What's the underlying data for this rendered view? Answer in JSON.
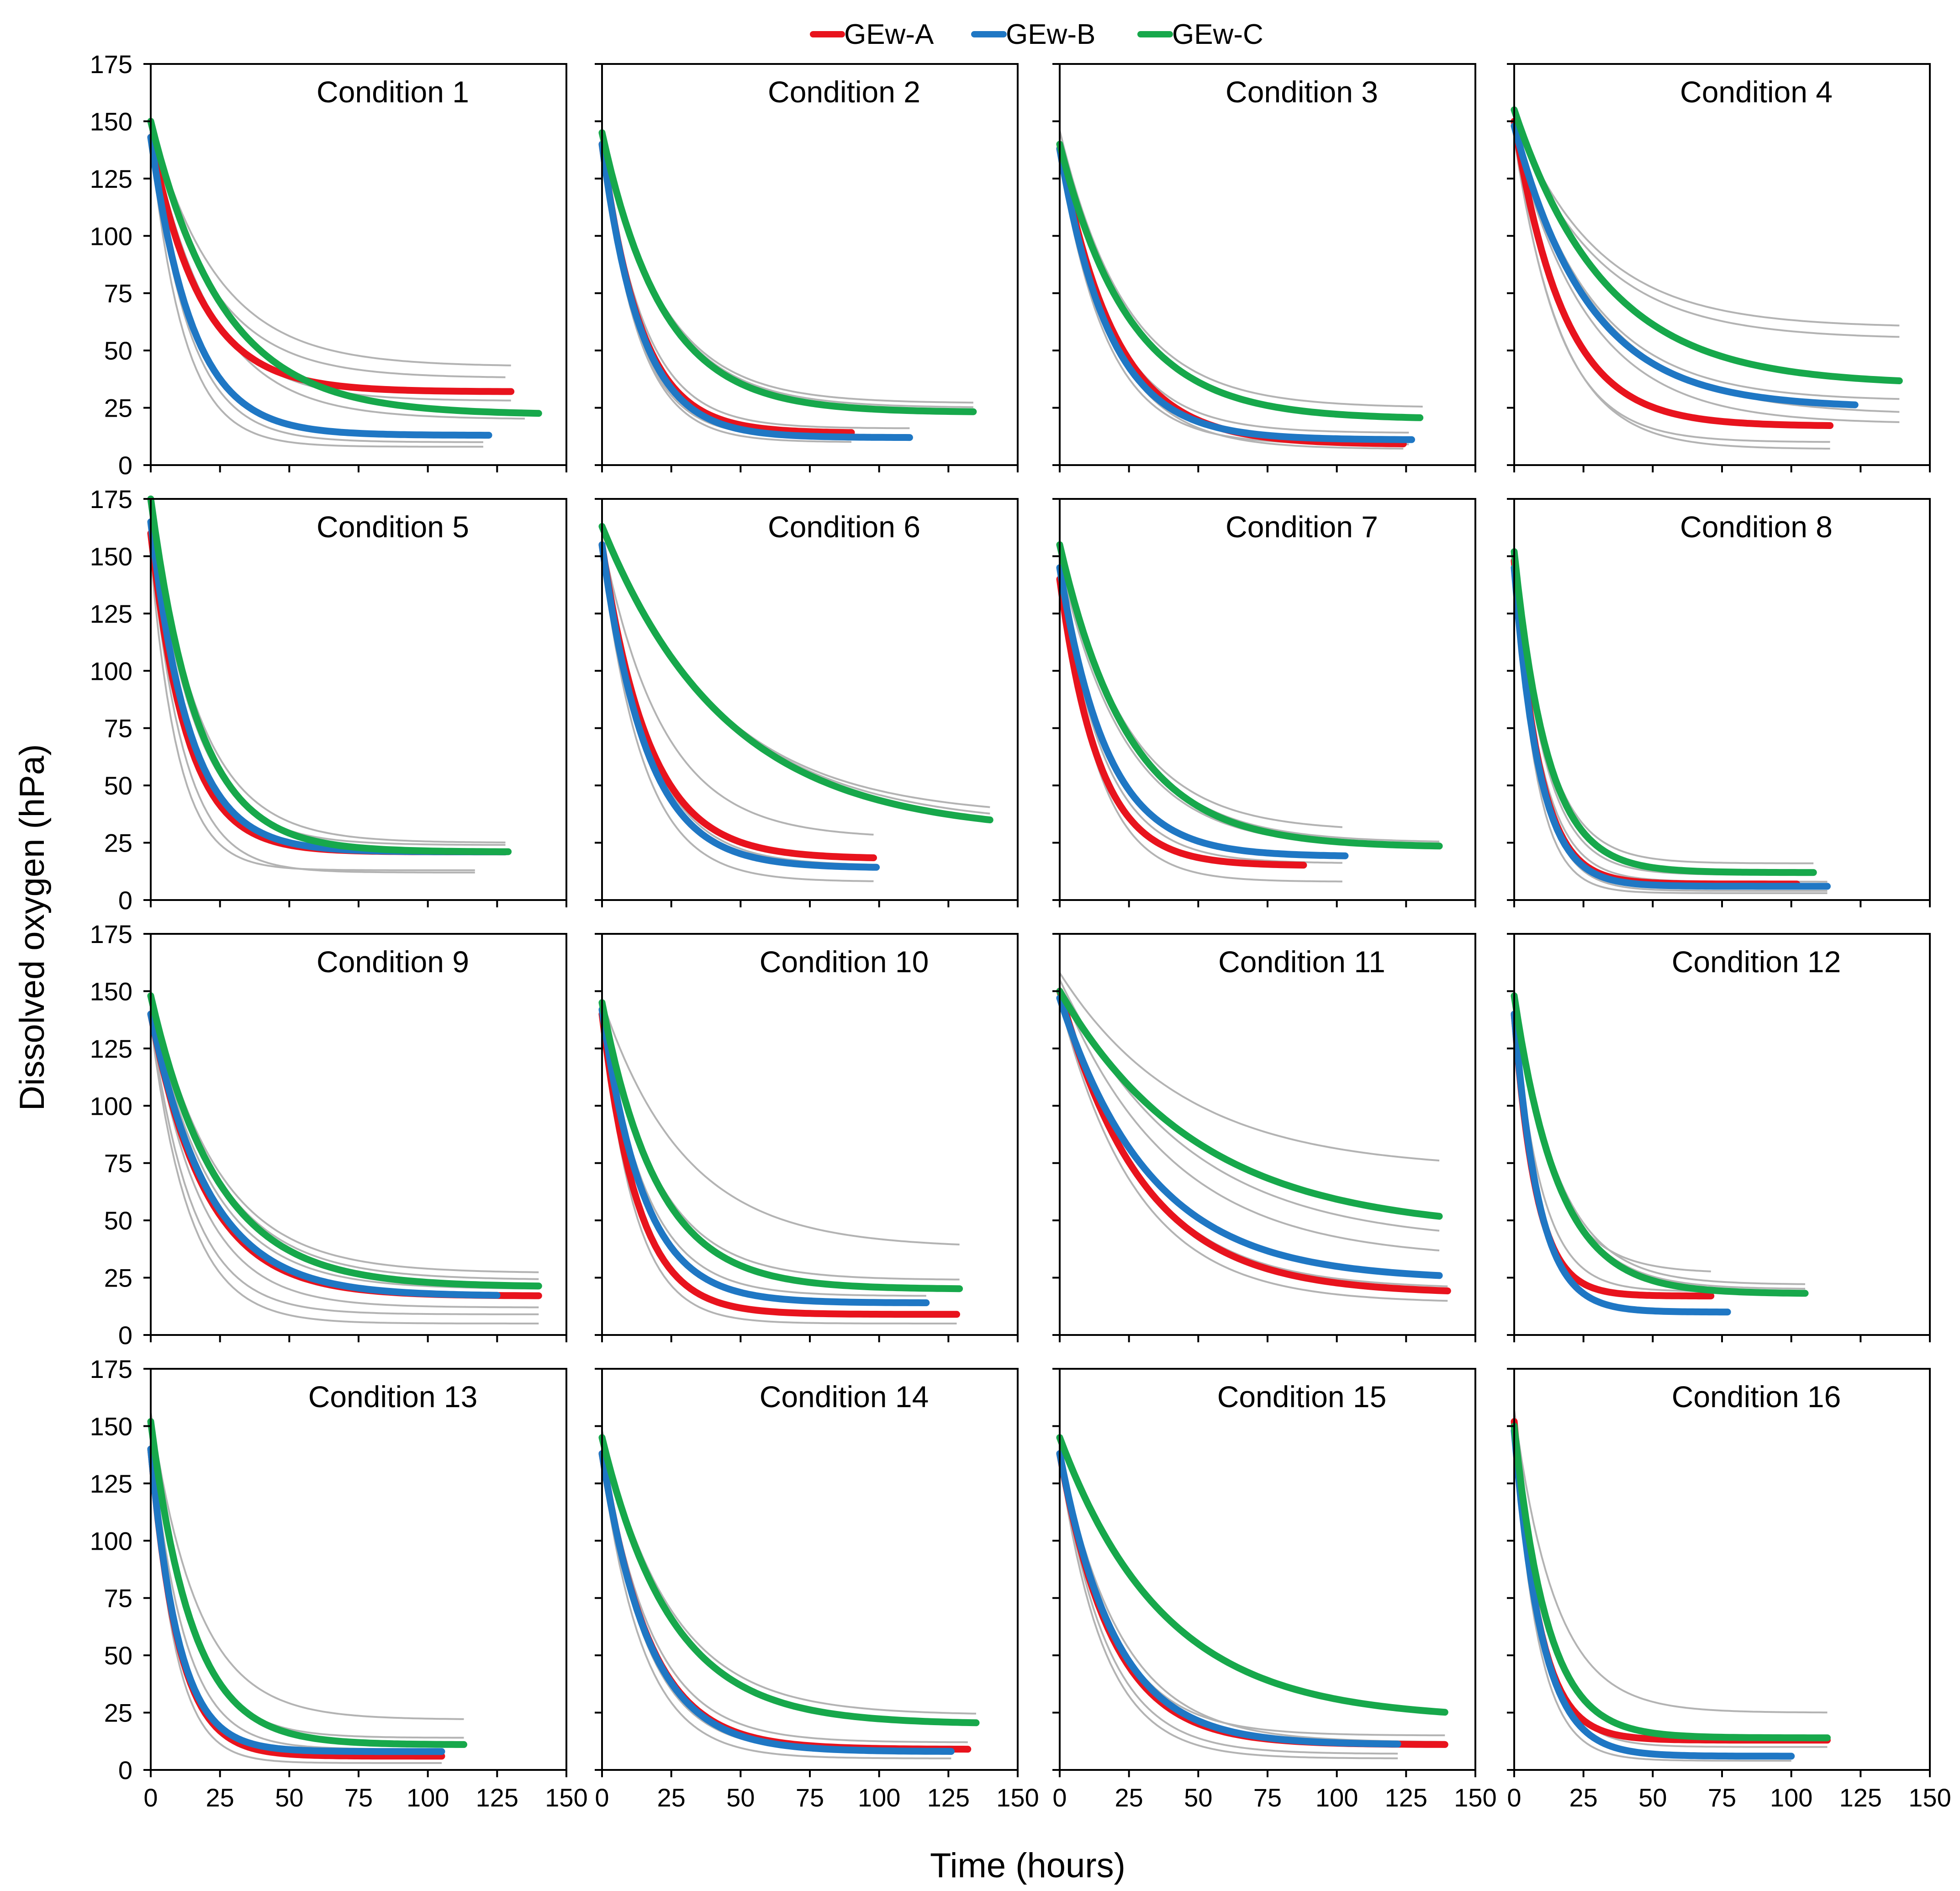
{
  "chart_data": {
    "type": "line",
    "title": "",
    "xlabel": "Time (hours)",
    "ylabel": "Dissolved oxygen (hPa)",
    "xlim": [
      0,
      150
    ],
    "ylim": [
      0,
      175
    ],
    "x_ticks": [
      0,
      25,
      50,
      75,
      100,
      125,
      150
    ],
    "y_ticks": [
      0,
      25,
      50,
      75,
      100,
      125,
      150,
      175
    ],
    "x_tick_labels": [
      "0",
      "25",
      "50",
      "75",
      "100",
      "125",
      "150"
    ],
    "y_tick_labels": [
      "0",
      "25",
      "50",
      "75",
      "100",
      "125",
      "150",
      "175"
    ],
    "grid": false,
    "legend_position": "top-center",
    "series_styles": [
      {
        "name": "GEw-A",
        "color": "#e8131d"
      },
      {
        "name": "GEw-B",
        "color": "#1f77c4"
      },
      {
        "name": "GEw-C",
        "color": "#17a84b"
      }
    ],
    "replicate_color": "#b3b3b3",
    "replicate_note": "grey lines are individual replicate traces",
    "curve_model": "exponential decay: y = plateau + (start - plateau) * exp(-t / tau)",
    "panels": [
      {
        "title": "Condition 1",
        "series": [
          {
            "name": "GEw-A",
            "start": 143,
            "plateau": 32,
            "tau": 18,
            "t_end": 130
          },
          {
            "name": "GEw-B",
            "start": 143,
            "plateau": 13,
            "tau": 15,
            "t_end": 122
          },
          {
            "name": "GEw-C",
            "start": 150,
            "plateau": 22,
            "tau": 26,
            "t_end": 140
          }
        ],
        "replicates": [
          [
            150,
            43,
            24,
            130
          ],
          [
            147,
            38,
            22,
            128
          ],
          [
            144,
            28,
            20,
            130
          ],
          [
            146,
            20,
            22,
            135
          ],
          [
            142,
            10,
            14,
            120
          ],
          [
            141,
            8,
            12,
            120
          ]
        ]
      },
      {
        "title": "Condition 2",
        "series": [
          {
            "name": "GEw-A",
            "start": 140,
            "plateau": 14,
            "tau": 14,
            "t_end": 90
          },
          {
            "name": "GEw-B",
            "start": 140,
            "plateau": 12,
            "tau": 14,
            "t_end": 111
          },
          {
            "name": "GEw-C",
            "start": 145,
            "plateau": 23,
            "tau": 22,
            "t_end": 134
          }
        ],
        "replicates": [
          [
            144,
            27,
            22,
            134
          ],
          [
            146,
            25,
            22,
            134
          ],
          [
            142,
            16,
            15,
            111
          ],
          [
            138,
            12,
            13,
            111
          ],
          [
            139,
            10,
            13,
            90
          ]
        ]
      },
      {
        "title": "Condition 3",
        "series": [
          {
            "name": "GEw-A",
            "start": 138,
            "plateau": 9,
            "tau": 20,
            "t_end": 124
          },
          {
            "name": "GEw-B",
            "start": 138,
            "plateau": 11,
            "tau": 18,
            "t_end": 127
          },
          {
            "name": "GEw-C",
            "start": 140,
            "plateau": 20,
            "tau": 25,
            "t_end": 130
          }
        ],
        "replicates": [
          [
            146,
            25,
            24,
            131
          ],
          [
            141,
            21,
            25,
            130
          ],
          [
            139,
            14,
            19,
            126
          ],
          [
            134,
            9,
            17,
            126
          ],
          [
            135,
            7,
            19,
            124
          ]
        ]
      },
      {
        "title": "Condition 4",
        "series": [
          {
            "name": "GEw-A",
            "start": 150,
            "plateau": 17,
            "tau": 18,
            "t_end": 114
          },
          {
            "name": "GEw-B",
            "start": 148,
            "plateau": 25,
            "tau": 27,
            "t_end": 123
          },
          {
            "name": "GEw-C",
            "start": 155,
            "plateau": 35,
            "tau": 33,
            "t_end": 139
          }
        ],
        "replicates": [
          [
            152,
            60,
            30,
            139
          ],
          [
            150,
            55,
            30,
            139
          ],
          [
            148,
            28,
            28,
            139
          ],
          [
            146,
            22,
            30,
            139
          ],
          [
            144,
            18,
            27,
            139
          ],
          [
            145,
            10,
            16,
            114
          ],
          [
            143,
            7,
            17,
            114
          ]
        ]
      },
      {
        "title": "Condition 5",
        "series": [
          {
            "name": "GEw-A",
            "start": 160,
            "plateau": 21,
            "tau": 13,
            "t_end": 128
          },
          {
            "name": "GEw-B",
            "start": 165,
            "plateau": 21,
            "tau": 14,
            "t_end": 128
          },
          {
            "name": "GEw-C",
            "start": 175,
            "plateau": 21,
            "tau": 17,
            "t_end": 129
          }
        ],
        "replicates": [
          [
            172,
            25,
            18,
            128
          ],
          [
            168,
            24,
            16,
            128
          ],
          [
            160,
            20,
            14,
            128
          ],
          [
            150,
            13,
            10,
            117
          ],
          [
            155,
            12,
            12,
            117
          ]
        ]
      },
      {
        "title": "Condition 6",
        "series": [
          {
            "name": "GEw-A",
            "start": 155,
            "plateau": 18,
            "tau": 17,
            "t_end": 98
          },
          {
            "name": "GEw-B",
            "start": 155,
            "plateau": 14,
            "tau": 16,
            "t_end": 99
          },
          {
            "name": "GEw-C",
            "start": 163,
            "plateau": 29,
            "tau": 45,
            "t_end": 140
          }
        ],
        "replicates": [
          [
            163,
            36,
            42,
            140
          ],
          [
            160,
            32,
            45,
            140
          ],
          [
            158,
            27,
            22,
            98
          ],
          [
            154,
            15,
            17,
            99
          ],
          [
            150,
            8,
            15,
            98
          ]
        ]
      },
      {
        "title": "Condition 7",
        "series": [
          {
            "name": "GEw-A",
            "start": 140,
            "plateau": 15,
            "tau": 14,
            "t_end": 88
          },
          {
            "name": "GEw-B",
            "start": 145,
            "plateau": 19,
            "tau": 17,
            "t_end": 103
          },
          {
            "name": "GEw-C",
            "start": 155,
            "plateau": 23,
            "tau": 25,
            "t_end": 137
          }
        ],
        "replicates": [
          [
            156,
            30,
            24,
            102
          ],
          [
            152,
            25,
            25,
            137
          ],
          [
            148,
            23,
            24,
            137
          ],
          [
            143,
            16,
            16,
            102
          ],
          [
            142,
            8,
            14,
            102
          ]
        ]
      },
      {
        "title": "Condition 8",
        "series": [
          {
            "name": "GEw-A",
            "start": 148,
            "plateau": 7,
            "tau": 9,
            "t_end": 102
          },
          {
            "name": "GEw-B",
            "start": 145,
            "plateau": 6,
            "tau": 9,
            "t_end": 113
          },
          {
            "name": "GEw-C",
            "start": 152,
            "plateau": 12,
            "tau": 12,
            "t_end": 108
          }
        ],
        "replicates": [
          [
            152,
            16,
            12,
            108
          ],
          [
            150,
            11,
            11,
            108
          ],
          [
            147,
            8,
            10,
            113
          ],
          [
            144,
            4,
            9,
            113
          ],
          [
            145,
            3,
            8,
            113
          ]
        ]
      },
      {
        "title": "Condition 9",
        "series": [
          {
            "name": "GEw-A",
            "start": 140,
            "plateau": 17,
            "tau": 20,
            "t_end": 140
          },
          {
            "name": "GEw-B",
            "start": 140,
            "plateau": 17,
            "tau": 21,
            "t_end": 125
          },
          {
            "name": "GEw-C",
            "start": 148,
            "plateau": 21,
            "tau": 24,
            "t_end": 140
          }
        ],
        "replicates": [
          [
            150,
            27,
            24,
            140
          ],
          [
            147,
            24,
            24,
            140
          ],
          [
            144,
            20,
            22,
            140
          ],
          [
            140,
            12,
            18,
            140
          ],
          [
            138,
            9,
            15,
            140
          ],
          [
            136,
            5,
            14,
            140
          ]
        ]
      },
      {
        "title": "Condition 10",
        "series": [
          {
            "name": "GEw-A",
            "start": 140,
            "plateau": 9,
            "tau": 13,
            "t_end": 128
          },
          {
            "name": "GEw-B",
            "start": 142,
            "plateau": 14,
            "tau": 15,
            "t_end": 117
          },
          {
            "name": "GEw-C",
            "start": 145,
            "plateau": 20,
            "tau": 20,
            "t_end": 129
          }
        ],
        "replicates": [
          [
            146,
            38,
            30,
            129
          ],
          [
            144,
            24,
            20,
            129
          ],
          [
            141,
            17,
            16,
            117
          ],
          [
            139,
            8,
            13,
            128
          ],
          [
            138,
            5,
            12,
            128
          ]
        ]
      },
      {
        "title": "Condition 11",
        "series": [
          {
            "name": "GEw-A",
            "start": 150,
            "plateau": 18,
            "tau": 30,
            "t_end": 140
          },
          {
            "name": "GEw-B",
            "start": 147,
            "plateau": 24,
            "tau": 33,
            "t_end": 137
          },
          {
            "name": "GEw-C",
            "start": 150,
            "plateau": 45,
            "tau": 50,
            "t_end": 137
          }
        ],
        "replicates": [
          [
            158,
            72,
            45,
            137
          ],
          [
            155,
            40,
            45,
            137
          ],
          [
            152,
            33,
            40,
            137
          ],
          [
            149,
            20,
            30,
            140
          ],
          [
            147,
            17,
            30,
            140
          ],
          [
            146,
            14,
            28,
            140
          ]
        ]
      },
      {
        "title": "Condition 12",
        "series": [
          {
            "name": "GEw-A",
            "start": 140,
            "plateau": 17,
            "tau": 8,
            "t_end": 71
          },
          {
            "name": "GEw-B",
            "start": 140,
            "plateau": 10,
            "tau": 9,
            "t_end": 77
          },
          {
            "name": "GEw-C",
            "start": 148,
            "plateau": 18,
            "tau": 16,
            "t_end": 105
          }
        ],
        "replicates": [
          [
            150,
            22,
            16,
            105
          ],
          [
            146,
            20,
            16,
            105
          ],
          [
            143,
            27,
            14,
            71
          ],
          [
            140,
            19,
            10,
            71
          ],
          [
            138,
            11,
            9,
            77
          ]
        ]
      },
      {
        "title": "Condition 13",
        "series": [
          {
            "name": "GEw-A",
            "start": 140,
            "plateau": 6,
            "tau": 10,
            "t_end": 105
          },
          {
            "name": "GEw-B",
            "start": 140,
            "plateau": 8,
            "tau": 10,
            "t_end": 105
          },
          {
            "name": "GEw-C",
            "start": 152,
            "plateau": 11,
            "tau": 15,
            "t_end": 113
          }
        ],
        "replicates": [
          [
            156,
            22,
            17,
            113
          ],
          [
            150,
            14,
            14,
            113
          ],
          [
            145,
            9,
            12,
            105
          ],
          [
            140,
            5,
            10,
            105
          ],
          [
            138,
            3,
            9,
            105
          ]
        ]
      },
      {
        "title": "Condition 14",
        "series": [
          {
            "name": "GEw-A",
            "start": 138,
            "plateau": 9,
            "tau": 17,
            "t_end": 132
          },
          {
            "name": "GEw-B",
            "start": 138,
            "plateau": 8,
            "tau": 17,
            "t_end": 126
          },
          {
            "name": "GEw-C",
            "start": 145,
            "plateau": 20,
            "tau": 25,
            "t_end": 135
          }
        ],
        "replicates": [
          [
            148,
            24,
            25,
            135
          ],
          [
            146,
            20,
            24,
            135
          ],
          [
            141,
            12,
            18,
            132
          ],
          [
            137,
            8,
            16,
            132
          ],
          [
            134,
            5,
            15,
            126
          ]
        ]
      },
      {
        "title": "Condition 15",
        "series": [
          {
            "name": "GEw-A",
            "start": 138,
            "plateau": 11,
            "tau": 19,
            "t_end": 139
          },
          {
            "name": "GEw-B",
            "start": 138,
            "plateau": 11,
            "tau": 20,
            "t_end": 122
          },
          {
            "name": "GEw-C",
            "start": 145,
            "plateau": 22,
            "tau": 38,
            "t_end": 139
          }
        ],
        "replicates": [
          [
            141,
            15,
            19,
            139
          ],
          [
            139,
            12,
            22,
            139
          ],
          [
            137,
            7,
            17,
            122
          ],
          [
            135,
            5,
            16,
            122
          ]
        ]
      },
      {
        "title": "Condition 16",
        "series": [
          {
            "name": "GEw-A",
            "start": 152,
            "plateau": 13,
            "tau": 9,
            "t_end": 113
          },
          {
            "name": "GEw-B",
            "start": 148,
            "plateau": 6,
            "tau": 10,
            "t_end": 100
          },
          {
            "name": "GEw-C",
            "start": 150,
            "plateau": 14,
            "tau": 12,
            "t_end": 113
          }
        ],
        "replicates": [
          [
            157,
            25,
            15,
            113
          ],
          [
            150,
            15,
            12,
            113
          ],
          [
            147,
            10,
            10,
            113
          ],
          [
            145,
            6,
            10,
            100
          ],
          [
            143,
            4,
            9,
            100
          ]
        ]
      }
    ]
  }
}
